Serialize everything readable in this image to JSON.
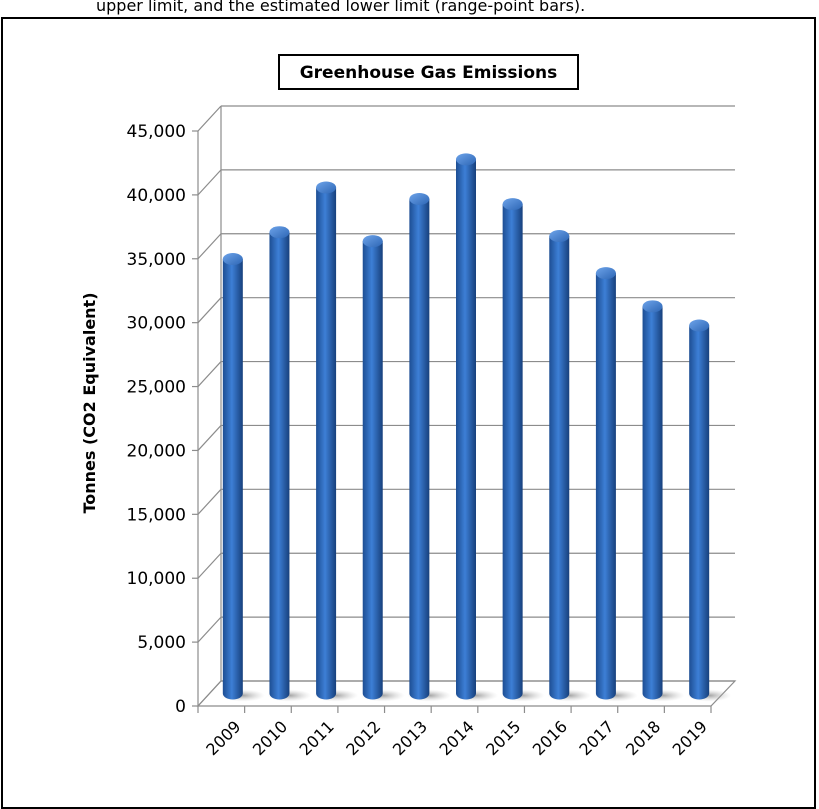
{
  "top_text": "upper limit, and the estimated lower limit (range-point bars).",
  "chart_data": {
    "type": "bar",
    "title": "Greenhouse Gas Emissions",
    "xlabel": "",
    "ylabel": "Tonnes (CO2 Equivalent)",
    "categories": [
      "2009",
      "2010",
      "2011",
      "2012",
      "2013",
      "2014",
      "2015",
      "2016",
      "2017",
      "2018",
      "2019"
    ],
    "values": [
      34000,
      36100,
      39600,
      35400,
      38700,
      41800,
      38300,
      35800,
      32900,
      30300,
      28800
    ],
    "ylim": [
      0,
      45000
    ],
    "yticks": [
      "0",
      "5,000",
      "10,000",
      "15,000",
      "20,000",
      "25,000",
      "30,000",
      "35,000",
      "40,000",
      "45,000"
    ],
    "grid": true,
    "bar_color": "#2f6cc0",
    "bar_style": "3d-cylinder"
  }
}
